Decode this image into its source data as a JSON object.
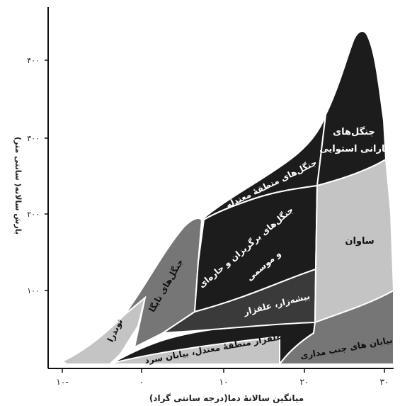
{
  "axes": {
    "x_label": "میانگین سالانهٔ دما(درجه سانتی گراد)",
    "y_label": "بارش سالانه( سانتی متر)",
    "x_ticks": [
      "۱۰-",
      "۰",
      "۱۰",
      "۲۰",
      "۳۰"
    ],
    "y_ticks": [
      "۱۰۰",
      "۲۰۰",
      "۳۰۰",
      "۴۰۰"
    ]
  },
  "biomes": {
    "tundra": "توندرا",
    "taiga": "جنگل‌های تایگا",
    "temperate_forest": "جنگل‌های منطقهٔ معتدله",
    "deciduous_forest_line1": "جنگل‌های برگریزان و حاره‌ای",
    "deciduous_forest_line2": "و موسمی",
    "shrubland": "بیشه‌زار، علفزار",
    "temperate_grassland": "علفزار منطقهٔ معتدل، بیابان سرد",
    "rainforest_line1": "جنگل‌های",
    "rainforest_line2": "بارانی استوایی",
    "savanna": "ساوان",
    "subtropical_desert": "بیابان های جنب مداری"
  },
  "colors": {
    "dark": "#1c1c1c",
    "mid_dark": "#3a3a3a",
    "mid": "#767676",
    "light": "#c4c4c4",
    "axis": "#111111"
  }
}
